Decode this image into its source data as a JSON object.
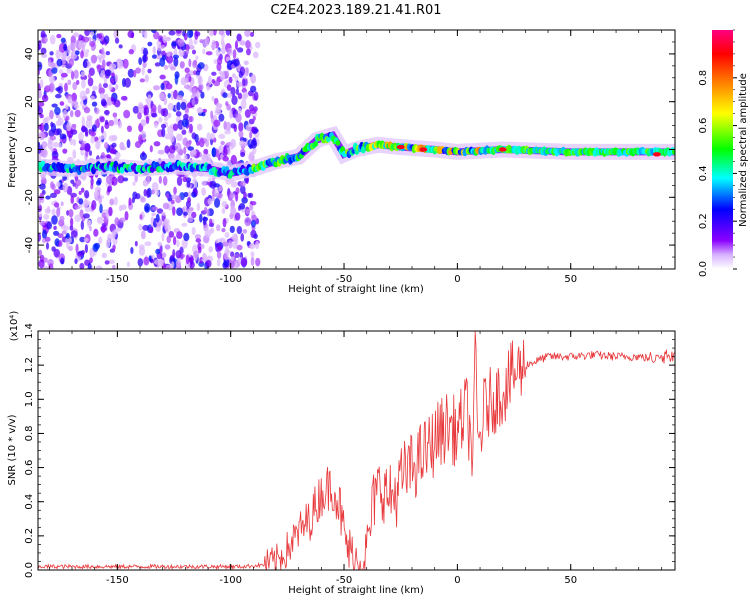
{
  "title": "C2E4.2023.189.21.41.R01",
  "chart_data": [
    {
      "type": "heatmap",
      "xlabel": "Height of straight line (km)",
      "ylabel": "Frequency (Hz)",
      "xlim": [
        -185,
        96
      ],
      "ylim": [
        -50,
        50
      ],
      "xticks": [
        -150,
        -100,
        -50,
        0,
        50
      ],
      "xtick_labels": [
        "-150",
        "-100",
        "-50",
        "0",
        "50"
      ],
      "yticks": [
        -40,
        -20,
        0,
        20,
        40
      ],
      "ytick_labels": [
        "-40",
        "-20",
        "0",
        "20",
        "40"
      ],
      "colorbar": {
        "label": "Normalized spectral amplitude",
        "range": [
          0,
          1
        ],
        "ticks": [
          0.0,
          0.2,
          0.4,
          0.6,
          0.8
        ],
        "tick_labels": [
          "0.0",
          "0.2",
          "0.4",
          "0.6",
          "0.8"
        ],
        "colors": [
          "#ffffff",
          "#8a00ff",
          "#0000ff",
          "#00ffff",
          "#00ff00",
          "#ffff00",
          "#ff8000",
          "#ff0000",
          "#ff0080"
        ]
      },
      "ridge": [
        {
          "x": -185,
          "y": -7
        },
        {
          "x": -175,
          "y": -8
        },
        {
          "x": -165,
          "y": -8
        },
        {
          "x": -155,
          "y": -7
        },
        {
          "x": -140,
          "y": -8
        },
        {
          "x": -125,
          "y": -7
        },
        {
          "x": -110,
          "y": -8
        },
        {
          "x": -100,
          "y": -10
        },
        {
          "x": -90,
          "y": -8
        },
        {
          "x": -80,
          "y": -5
        },
        {
          "x": -70,
          "y": -3
        },
        {
          "x": -62,
          "y": 4
        },
        {
          "x": -55,
          "y": 6
        },
        {
          "x": -50,
          "y": -2
        },
        {
          "x": -45,
          "y": 0
        },
        {
          "x": -35,
          "y": 2
        },
        {
          "x": -25,
          "y": 1
        },
        {
          "x": -10,
          "y": 0
        },
        {
          "x": 0,
          "y": -1
        },
        {
          "x": 20,
          "y": 0
        },
        {
          "x": 50,
          "y": -1
        },
        {
          "x": 80,
          "y": -1
        },
        {
          "x": 96,
          "y": -1
        }
      ],
      "noise_region": [
        -185,
        -88
      ]
    },
    {
      "type": "line",
      "xlabel": "Height of straight line (km)",
      "ylabel": "SNR (10 * v/v)",
      "yscale_label": "(x10⁴)",
      "xlim": [
        -185,
        96
      ],
      "ylim": [
        0,
        1.4
      ],
      "xticks": [
        -150,
        -100,
        -50,
        0,
        50
      ],
      "xtick_labels": [
        "-150",
        "-100",
        "-50",
        "0",
        "50"
      ],
      "yticks": [
        0.0,
        0.2,
        0.4,
        0.6,
        0.8,
        1.0,
        1.2,
        1.4
      ],
      "ytick_labels": [
        "0.0",
        "0.2",
        "0.4",
        "0.6",
        "0.8",
        "1.0",
        "1.2",
        "1.4"
      ],
      "color": "#e8383b",
      "series": [
        {
          "x": [
            -185,
            -170,
            -150,
            -130,
            -110,
            -95,
            -85,
            -80,
            -75,
            -70,
            -65,
            -60,
            -55,
            -52,
            -50,
            -47,
            -44,
            -40,
            -37,
            -34,
            -30,
            -27,
            -24,
            -20,
            -16,
            -12,
            -8,
            -4,
            0,
            4,
            7,
            8,
            9,
            12,
            16,
            20,
            25,
            30,
            40,
            50,
            60,
            70,
            80,
            85,
            90,
            96
          ],
          "y": [
            0.02,
            0.02,
            0.02,
            0.02,
            0.02,
            0.02,
            0.03,
            0.05,
            0.12,
            0.22,
            0.3,
            0.45,
            0.5,
            0.38,
            0.2,
            0.08,
            0.05,
            0.1,
            0.4,
            0.5,
            0.42,
            0.45,
            0.55,
            0.6,
            0.66,
            0.72,
            0.8,
            0.85,
            0.8,
            0.95,
            0.65,
            1.4,
            0.7,
            0.95,
            1.0,
            1.05,
            1.15,
            1.2,
            1.25,
            1.25,
            1.26,
            1.25,
            1.25,
            1.24,
            1.26,
            1.25
          ]
        }
      ]
    }
  ]
}
